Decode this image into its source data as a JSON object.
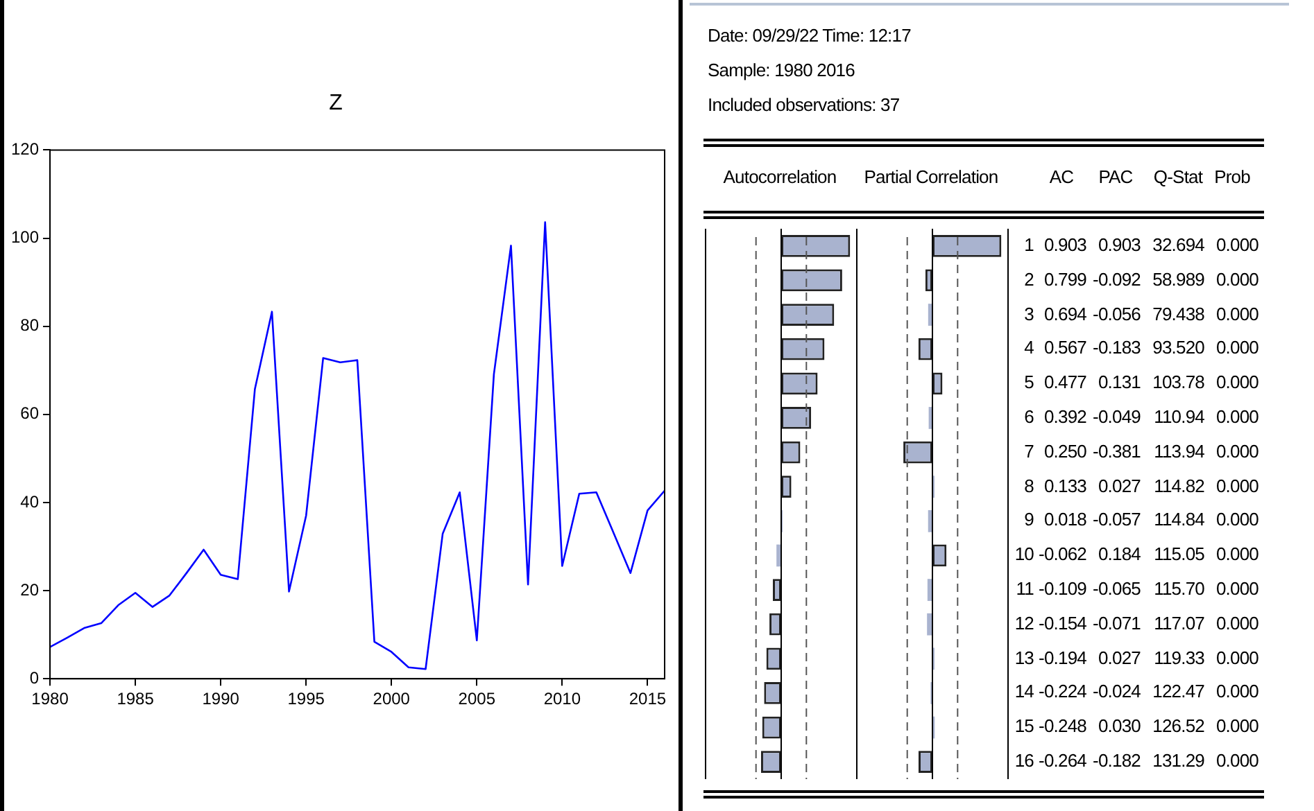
{
  "chart_data": [
    {
      "type": "line",
      "title": "Z",
      "x": [
        1980,
        1981,
        1982,
        1983,
        1984,
        1985,
        1986,
        1987,
        1988,
        1989,
        1990,
        1991,
        1992,
        1993,
        1994,
        1995,
        1996,
        1997,
        1998,
        1999,
        2000,
        2001,
        2002,
        2003,
        2004,
        2005,
        2006,
        2007,
        2008,
        2009,
        2010,
        2011,
        2012,
        2013,
        2014,
        2015,
        2016
      ],
      "series": [
        {
          "color": "#0000ff",
          "values": [
            7.2,
            9.3,
            11.5,
            12.6,
            16.7,
            19.5,
            16.3,
            18.9,
            24,
            29.3,
            23.6,
            22.6,
            65.7,
            83.3,
            19.8,
            37,
            72.8,
            71.8,
            72.3,
            8.4,
            6.1,
            2.6,
            2.2,
            32.9,
            42.3,
            8.7,
            69.1,
            98.3,
            21.4,
            103.6,
            25.6,
            42,
            42.3,
            33.2,
            24,
            38.2,
            42.7
          ]
        }
      ],
      "xlim": [
        1980,
        2016
      ],
      "xticks": [
        1980,
        1985,
        1990,
        1995,
        2000,
        2005,
        2010,
        2015
      ],
      "ylim": [
        0,
        120
      ],
      "yticks": [
        0,
        20,
        40,
        60,
        80,
        100,
        120
      ],
      "grid": false,
      "legend": false,
      "marker": "none",
      "line_style": "solid"
    },
    {
      "type": "other",
      "annotations": [
        "Date: 09/29/22   Time: 12:17",
        "Sample: 1980 2016",
        "Included observations: 37"
      ]
    },
    {
      "type": "bar",
      "orientation": "horizontal",
      "title": "Autocorrelation",
      "categories": [
        "1",
        "2",
        "3",
        "4",
        "5",
        "6",
        "7",
        "8",
        "9",
        "10",
        "11",
        "12",
        "13",
        "14",
        "15",
        "16"
      ],
      "series": [
        {
          "name": "AC",
          "color": "#a9b3cf",
          "values": [
            0.903,
            0.799,
            0.694,
            0.567,
            0.477,
            0.392,
            0.25,
            0.133,
            0.018,
            -0.062,
            -0.109,
            -0.154,
            -0.194,
            -0.224,
            -0.248,
            -0.264
          ],
          "value_labels": [
            "0.903",
            "0.799",
            "0.694",
            "0.567",
            "0.477",
            "0.392",
            "0.250",
            "0.133",
            "0.018",
            "-0.062",
            "-0.109",
            "-0.154",
            "-0.194",
            "-0.224",
            "-0.248",
            "-0.264"
          ]
        }
      ],
      "xlim": [
        -1,
        1
      ],
      "tick_labels": "y",
      "legend": false,
      "ref_lines": [
        {
          "axis": "x",
          "value": -0.33,
          "line_style": "dashed"
        },
        {
          "axis": "x",
          "value": 0.33,
          "line_style": "dashed"
        }
      ]
    },
    {
      "type": "bar",
      "orientation": "horizontal",
      "title": "Partial Correlation",
      "categories": [
        null,
        null,
        null,
        null,
        null,
        null,
        null,
        null,
        null,
        null,
        null,
        null,
        null,
        null,
        null,
        null
      ],
      "series": [
        {
          "name": "PAC",
          "color": "#a9b3cf",
          "values": [
            0.903,
            -0.092,
            -0.056,
            -0.183,
            0.131,
            -0.049,
            -0.381,
            0.027,
            -0.057,
            0.184,
            -0.065,
            -0.071,
            0.027,
            -0.024,
            0.03,
            -0.182
          ],
          "value_labels": [
            "0.903",
            "-0.092",
            "-0.056",
            "-0.183",
            "0.131",
            "-0.049",
            "-0.381",
            "0.027",
            "-0.057",
            "0.184",
            "-0.065",
            "-0.071",
            "0.027",
            "-0.024",
            "0.030",
            "-0.182"
          ]
        }
      ],
      "xlim": [
        -1,
        1
      ],
      "tick_labels": false,
      "legend": false,
      "ref_lines": [
        {
          "axis": "x",
          "value": -0.33,
          "line_style": "dashed"
        },
        {
          "axis": "x",
          "value": 0.33,
          "line_style": "dashed"
        }
      ]
    },
    {
      "type": "other",
      "annotations": [
        "Q-Stat",
        "Prob",
        "32.694",
        "58.989",
        "79.438",
        "93.520",
        "103.78",
        "110.94",
        "113.94",
        "114.82",
        "114.84",
        "115.05",
        "115.70",
        "117.07",
        "119.33",
        "122.47",
        "126.52",
        "131.29",
        "0.000",
        "0.000",
        "0.000",
        "0.000",
        "0.000",
        "0.000",
        "0.000",
        "0.000",
        "0.000",
        "0.000",
        "0.000",
        "0.000",
        "0.000",
        "0.000",
        "0.000",
        "0.000"
      ]
    }
  ]
}
